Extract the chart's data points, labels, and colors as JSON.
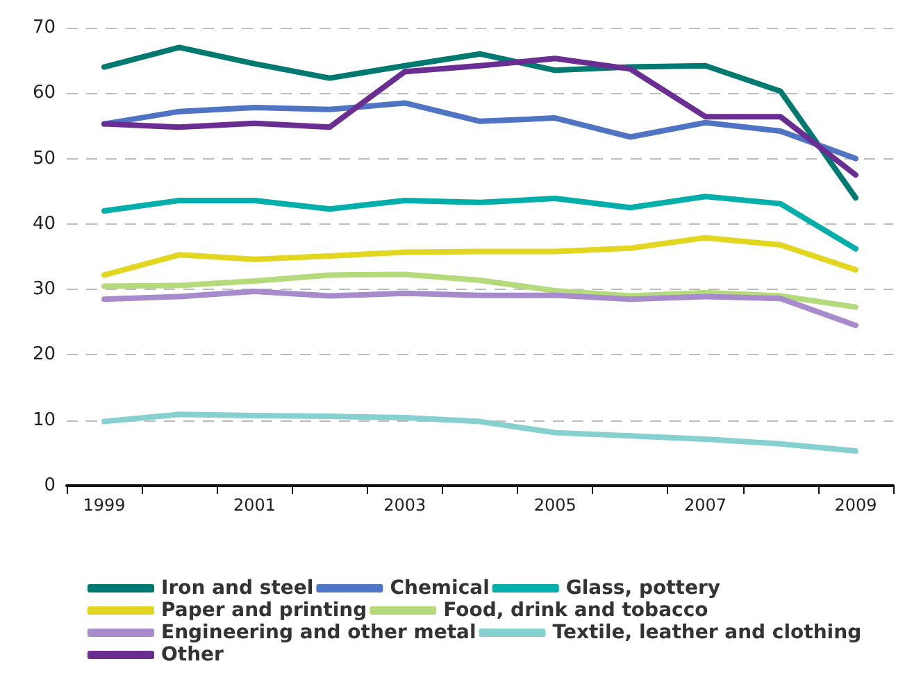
{
  "chart_data": {
    "type": "line",
    "categories": [
      "1999",
      null,
      "2001",
      null,
      "2003",
      null,
      "2005",
      null,
      "2007",
      null,
      "2009"
    ],
    "ylim": [
      0,
      70
    ],
    "yticks": [
      0,
      10,
      20,
      30,
      40,
      50,
      60,
      70
    ],
    "grid": "y",
    "legend": "bottom",
    "marker": "none",
    "line_style": "solid",
    "series": [
      {
        "name": "Iron and steel",
        "color": "#007a70",
        "values": [
          64,
          67,
          64.5,
          62.3,
          64.2,
          66,
          63.5,
          64,
          64.2,
          60.3,
          44
        ]
      },
      {
        "name": "Chemical",
        "color": "#4f74c4",
        "values": [
          55.3,
          57.2,
          57.8,
          57.5,
          58.5,
          55.7,
          56.2,
          53.3,
          55.5,
          54.2,
          50
        ]
      },
      {
        "name": "Glass, pottery",
        "color": "#00aeaa",
        "values": [
          42,
          43.6,
          43.6,
          42.3,
          43.6,
          43.3,
          43.9,
          42.5,
          44.2,
          43.1,
          36.2
        ]
      },
      {
        "name": "Paper and printing",
        "color": "#e2d620",
        "values": [
          32.2,
          35.3,
          34.6,
          35.1,
          35.7,
          35.8,
          35.8,
          36.3,
          37.9,
          36.8,
          33
        ]
      },
      {
        "name": "Food, drink and tobacco",
        "color": "#b4da7c",
        "values": [
          30.5,
          30.6,
          31.3,
          32.2,
          32.3,
          31.4,
          29.8,
          29,
          29.5,
          29,
          27.3
        ]
      },
      {
        "name": "Engineering and other metal",
        "color": "#a78bcc",
        "values": [
          28.5,
          28.9,
          29.7,
          29,
          29.4,
          29.1,
          29.1,
          28.5,
          28.9,
          28.6,
          24.5
        ]
      },
      {
        "name": "Textile, leather and clothing",
        "color": "#86d0cf",
        "values": [
          9.8,
          10.9,
          10.7,
          10.6,
          10.4,
          9.8,
          8.1,
          7.6,
          7.1,
          6.4,
          5.3
        ]
      },
      {
        "name": "Other",
        "color": "#6a2d91",
        "values": [
          55.3,
          54.8,
          55.4,
          54.8,
          63.3,
          64.2,
          65.3,
          63.7,
          56.4,
          56.4,
          47.5
        ]
      }
    ]
  }
}
